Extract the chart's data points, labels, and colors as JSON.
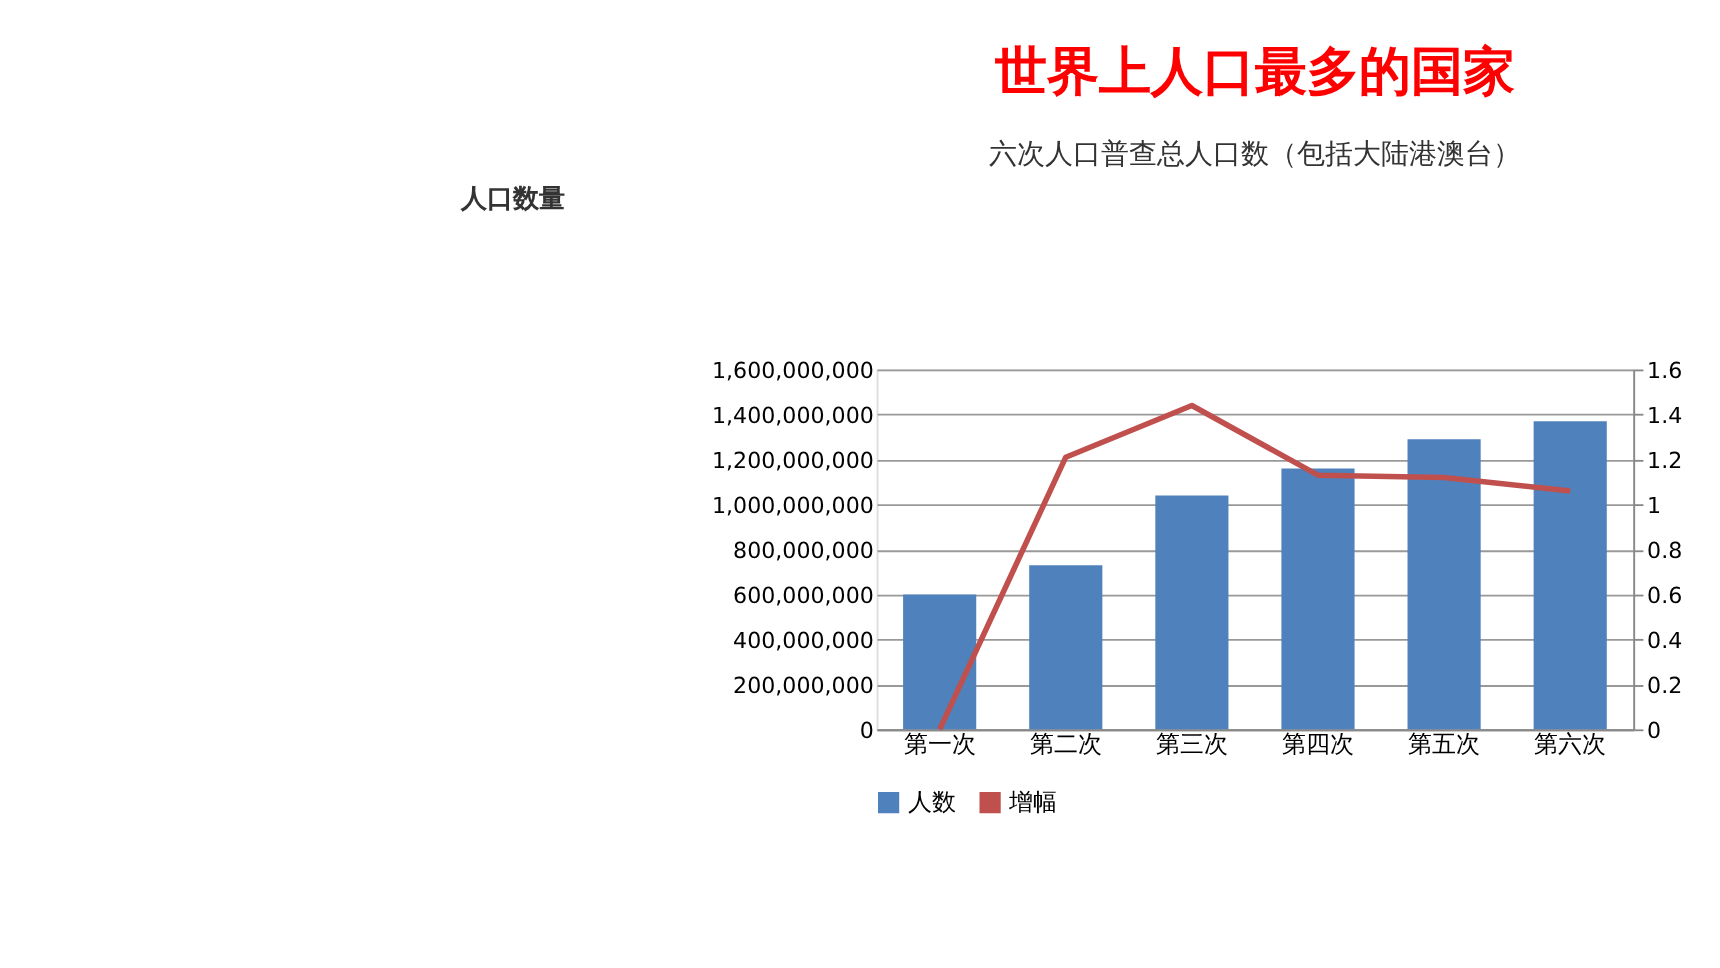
{
  "chart_data": {
    "type": "bar",
    "title": "世界上人口最多的国家",
    "subtitle": "六次人口普查总人口数（包括大陆港澳台）",
    "annotations": [
      "人口数量"
    ],
    "categories": [
      "第一次",
      "第二次",
      "第三次",
      "第四次",
      "第五次",
      "第六次"
    ],
    "series": [
      {
        "name": "人数",
        "type": "bar",
        "color": "#4f81bd",
        "values": [
          600000000,
          730000000,
          1040000000,
          1160000000,
          1290000000,
          1370000000
        ]
      },
      {
        "name": "增幅",
        "type": "line",
        "axis": "y2",
        "color": "#c0504d",
        "values": [
          0,
          1.21,
          1.44,
          1.13,
          1.12,
          1.06
        ]
      }
    ],
    "ylim": [
      0,
      1600000000
    ],
    "yticks": [
      {
        "value": 0,
        "label": "0"
      },
      {
        "value": 200000000,
        "label": "200,000,000"
      },
      {
        "value": 400000000,
        "label": "400,000,000"
      },
      {
        "value": 600000000,
        "label": "600,000,000"
      },
      {
        "value": 800000000,
        "label": "800,000,000"
      },
      {
        "value": 1000000000,
        "label": "1,000,000,000"
      },
      {
        "value": 1200000000,
        "label": "1,200,000,000"
      },
      {
        "value": 1400000000,
        "label": "1,400,000,000"
      },
      {
        "value": 1600000000,
        "label": "1,600,000,000"
      }
    ],
    "y2lim": [
      0,
      1.6
    ],
    "y2ticks": [
      0,
      0.2,
      0.4,
      0.6,
      0.8,
      1,
      1.2,
      1.4,
      1.6
    ],
    "grid": "y",
    "legend": "bottom"
  }
}
